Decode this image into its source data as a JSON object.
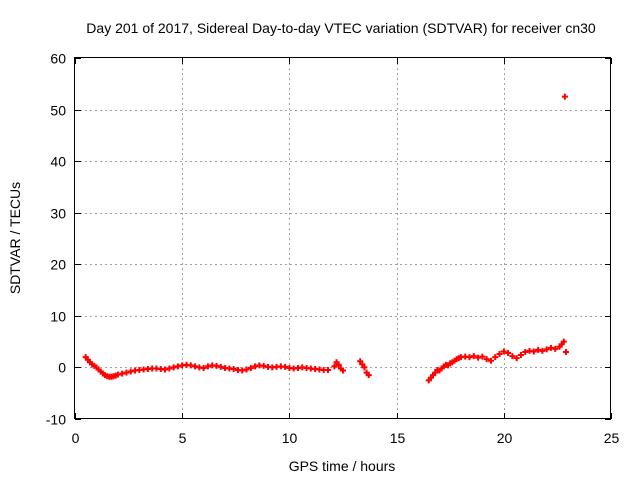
{
  "chart_data": {
    "type": "scatter",
    "title": "Day 201 of 2017, Sidereal Day-to-day VTEC variation (SDTVAR) for receiver cn30",
    "xlabel": "GPS time / hours",
    "ylabel": "SDTVAR / TECUs",
    "xlim": [
      0,
      25
    ],
    "ylim": [
      -10,
      60
    ],
    "x_ticks": [
      0,
      5,
      10,
      15,
      20,
      25
    ],
    "y_ticks": [
      -10,
      0,
      10,
      20,
      30,
      40,
      50,
      60
    ],
    "grid": true,
    "marker": "plus",
    "series": [
      {
        "name": "SDTVAR",
        "color": "#ff0000",
        "points": [
          [
            0.5,
            2.0
          ],
          [
            0.6,
            1.5
          ],
          [
            0.7,
            1.0
          ],
          [
            0.8,
            0.6
          ],
          [
            0.9,
            0.3
          ],
          [
            1.0,
            0.0
          ],
          [
            1.1,
            -0.4
          ],
          [
            1.2,
            -0.8
          ],
          [
            1.3,
            -1.2
          ],
          [
            1.4,
            -1.5
          ],
          [
            1.5,
            -1.7
          ],
          [
            1.6,
            -1.8
          ],
          [
            1.7,
            -1.8
          ],
          [
            1.8,
            -1.7
          ],
          [
            1.9,
            -1.6
          ],
          [
            2.0,
            -1.4
          ],
          [
            2.2,
            -1.2
          ],
          [
            2.4,
            -1.0
          ],
          [
            2.6,
            -0.8
          ],
          [
            2.8,
            -0.6
          ],
          [
            3.0,
            -0.5
          ],
          [
            3.2,
            -0.4
          ],
          [
            3.4,
            -0.3
          ],
          [
            3.6,
            -0.2
          ],
          [
            3.8,
            -0.2
          ],
          [
            4.0,
            -0.3
          ],
          [
            4.2,
            -0.4
          ],
          [
            4.4,
            -0.2
          ],
          [
            4.6,
            0.0
          ],
          [
            4.8,
            0.2
          ],
          [
            5.0,
            0.4
          ],
          [
            5.2,
            0.5
          ],
          [
            5.4,
            0.4
          ],
          [
            5.6,
            0.2
          ],
          [
            5.8,
            0.0
          ],
          [
            6.0,
            -0.1
          ],
          [
            6.2,
            0.2
          ],
          [
            6.4,
            0.4
          ],
          [
            6.6,
            0.3
          ],
          [
            6.8,
            0.1
          ],
          [
            7.0,
            -0.1
          ],
          [
            7.2,
            -0.2
          ],
          [
            7.4,
            -0.3
          ],
          [
            7.6,
            -0.5
          ],
          [
            7.8,
            -0.6
          ],
          [
            8.0,
            -0.4
          ],
          [
            8.2,
            -0.1
          ],
          [
            8.4,
            0.2
          ],
          [
            8.6,
            0.4
          ],
          [
            8.8,
            0.3
          ],
          [
            9.0,
            0.1
          ],
          [
            9.2,
            0.0
          ],
          [
            9.4,
            0.1
          ],
          [
            9.6,
            0.2
          ],
          [
            9.8,
            0.1
          ],
          [
            10.0,
            -0.1
          ],
          [
            10.2,
            -0.2
          ],
          [
            10.4,
            -0.1
          ],
          [
            10.6,
            0.0
          ],
          [
            10.8,
            -0.1
          ],
          [
            11.0,
            -0.2
          ],
          [
            11.2,
            -0.3
          ],
          [
            11.4,
            -0.4
          ],
          [
            11.6,
            -0.5
          ],
          [
            11.8,
            -0.5
          ],
          [
            12.1,
            0.2
          ],
          [
            12.2,
            1.0
          ],
          [
            12.3,
            0.5
          ],
          [
            12.4,
            -0.2
          ],
          [
            12.5,
            -0.6
          ],
          [
            13.3,
            1.2
          ],
          [
            13.4,
            0.6
          ],
          [
            13.5,
            0.0
          ],
          [
            13.6,
            -1.0
          ],
          [
            13.7,
            -1.5
          ],
          [
            16.5,
            -2.5
          ],
          [
            16.6,
            -2.0
          ],
          [
            16.7,
            -1.5
          ],
          [
            16.8,
            -1.0
          ],
          [
            16.9,
            -0.5
          ],
          [
            17.0,
            -0.6
          ],
          [
            17.1,
            -0.2
          ],
          [
            17.2,
            0.2
          ],
          [
            17.3,
            0.5
          ],
          [
            17.4,
            0.4
          ],
          [
            17.5,
            0.8
          ],
          [
            17.6,
            1.0
          ],
          [
            17.7,
            1.3
          ],
          [
            17.8,
            1.6
          ],
          [
            17.9,
            1.8
          ],
          [
            18.0,
            2.0
          ],
          [
            18.2,
            2.1
          ],
          [
            18.4,
            2.0
          ],
          [
            18.6,
            2.2
          ],
          [
            18.8,
            1.9
          ],
          [
            19.0,
            2.1
          ],
          [
            19.2,
            1.6
          ],
          [
            19.4,
            1.3
          ],
          [
            19.6,
            2.0
          ],
          [
            19.8,
            2.6
          ],
          [
            20.0,
            3.1
          ],
          [
            20.2,
            2.8
          ],
          [
            20.4,
            2.2
          ],
          [
            20.6,
            1.8
          ],
          [
            20.8,
            2.4
          ],
          [
            21.0,
            3.0
          ],
          [
            21.2,
            3.2
          ],
          [
            21.4,
            3.1
          ],
          [
            21.6,
            3.4
          ],
          [
            21.8,
            3.2
          ],
          [
            22.0,
            3.5
          ],
          [
            22.2,
            3.8
          ],
          [
            22.4,
            3.6
          ],
          [
            22.6,
            4.0
          ],
          [
            22.7,
            4.5
          ],
          [
            22.8,
            5.0
          ],
          [
            22.9,
            3.0
          ],
          [
            22.85,
            52.5
          ]
        ]
      }
    ]
  }
}
